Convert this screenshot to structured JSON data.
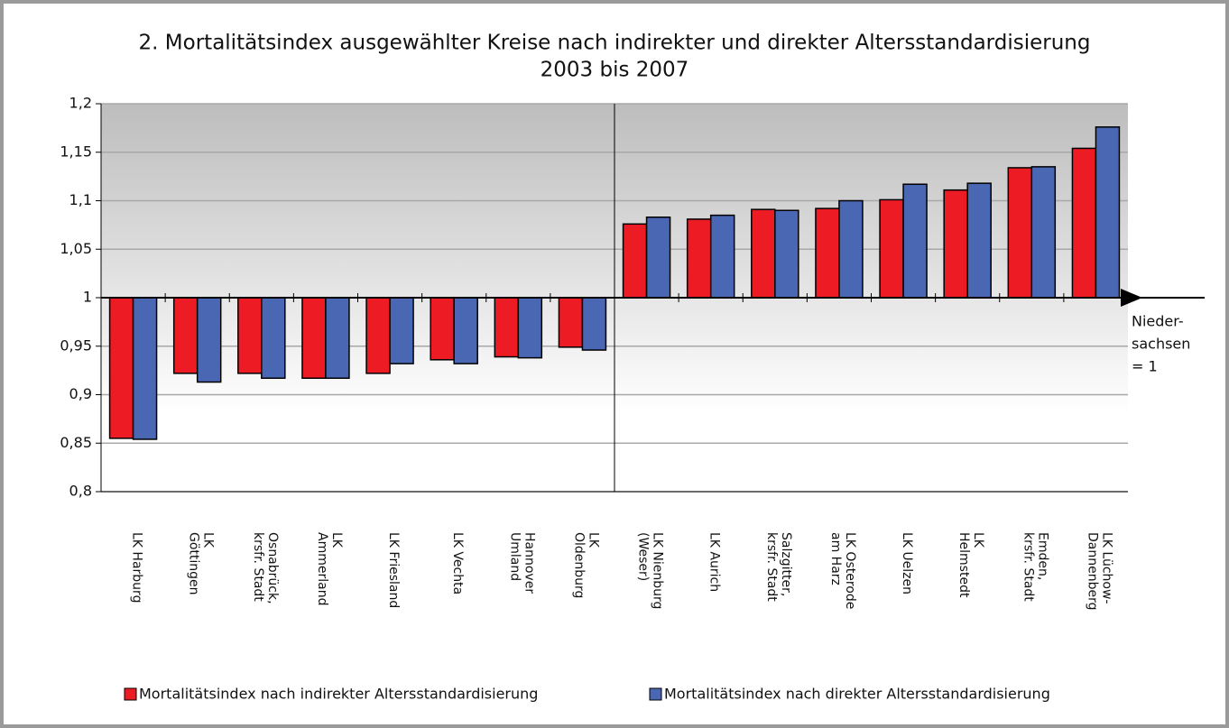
{
  "chart_data": {
    "type": "bar",
    "title": [
      "2. Mortalitätsindex ausgewählter Kreise nach indirekter und direkter Altersstandardisierung",
      "2003 bis 2007"
    ],
    "categories": [
      [
        "LK Harburg"
      ],
      [
        "LK",
        "Göttingen"
      ],
      [
        "Osnabrück,",
        "krsfr. Stadt"
      ],
      [
        "LK",
        "Ammerland"
      ],
      [
        "LK Friesland"
      ],
      [
        "LK Vechta"
      ],
      [
        "Hannover",
        "Umland"
      ],
      [
        "LK",
        "Oldenburg"
      ],
      [
        "LK Nienburg",
        "(Weser)"
      ],
      [
        "LK Aurich"
      ],
      [
        "Salzgitter,",
        "krsfr. Stadt"
      ],
      [
        "LK Osterode",
        "am Harz"
      ],
      [
        "LK Uelzen"
      ],
      [
        "LK",
        "Helmstedt"
      ],
      [
        "Emden,",
        "krsfr. Stadt"
      ],
      [
        "LK Lüchow-",
        "Dannenberg"
      ]
    ],
    "series": [
      {
        "name": "Mortalitätsindex nach indirekter Altersstandardisierung",
        "color": "#ed1c24",
        "values": [
          0.855,
          0.922,
          0.922,
          0.917,
          0.922,
          0.936,
          0.939,
          0.949,
          1.076,
          1.081,
          1.091,
          1.092,
          1.101,
          1.111,
          1.134,
          1.154
        ]
      },
      {
        "name": "Mortalitätsindex nach direkter Altersstandardisierung",
        "color": "#4a67b4",
        "values": [
          0.854,
          0.913,
          0.917,
          0.917,
          0.932,
          0.932,
          0.938,
          0.946,
          1.083,
          1.085,
          1.09,
          1.1,
          1.117,
          1.118,
          1.135,
          1.176
        ]
      }
    ],
    "baseline": 1,
    "annotation": [
      "Nieder-",
      "sachsen",
      "= 1"
    ],
    "ylim": [
      0.8,
      1.2
    ],
    "yticks": [
      {
        "value": 0.8,
        "label": "0,8"
      },
      {
        "value": 0.85,
        "label": "0,85"
      },
      {
        "value": 0.9,
        "label": "0,9"
      },
      {
        "value": 0.95,
        "label": "0,95"
      },
      1,
      {
        "value": 1.05,
        "label": "1,05"
      },
      {
        "value": 1.1,
        "label": "1,1"
      },
      {
        "value": 1.15,
        "label": "1,15"
      },
      {
        "value": 1.2,
        "label": "1,2"
      }
    ],
    "grid": true
  }
}
